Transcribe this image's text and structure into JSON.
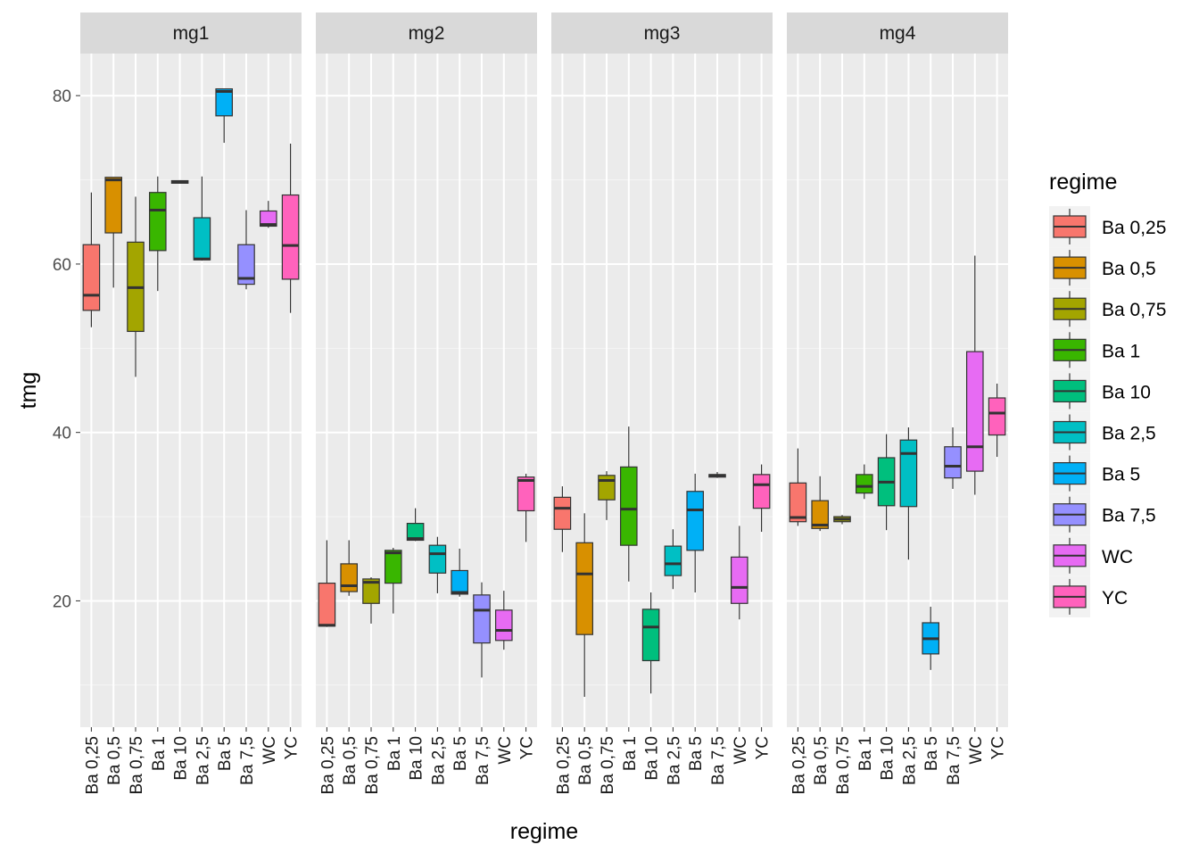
{
  "chart_data": {
    "type": "boxplot",
    "xlabel": "regime",
    "ylabel": "tmg",
    "ylim": [
      5,
      85
    ],
    "yticks": [
      20,
      40,
      60,
      80
    ],
    "grid": true,
    "legend": {
      "title": "regime",
      "position": "right",
      "entries": [
        "Ba 0,25",
        "Ba 0,5",
        "Ba 0,75",
        "Ba 1",
        "Ba 10",
        "Ba 2,5",
        "Ba 5",
        "Ba 7,5",
        "WC",
        "YC"
      ]
    },
    "colors": [
      "#F8766D",
      "#D89000",
      "#A3A500",
      "#39B600",
      "#00BF7D",
      "#00BFC4",
      "#00B0F6",
      "#9590FF",
      "#E76BF3",
      "#FF62BC"
    ],
    "categories": [
      "Ba 0,25",
      "Ba 0,5",
      "Ba 0,75",
      "Ba 1",
      "Ba 10",
      "Ba 2,5",
      "Ba 5",
      "Ba 7,5",
      "WC",
      "YC"
    ],
    "facets": [
      {
        "label": "mg1",
        "boxes": [
          {
            "regime": "Ba 0,25",
            "min": 52.5,
            "q1": 54.5,
            "median": 56.3,
            "q3": 62.3,
            "max": 68.5
          },
          {
            "regime": "Ba 0,5",
            "min": 57.2,
            "q1": 63.7,
            "median": 70.0,
            "q3": 70.3,
            "max": 70.3
          },
          {
            "regime": "Ba 0,75",
            "min": 46.6,
            "q1": 52.0,
            "median": 57.2,
            "q3": 62.6,
            "max": 68.0
          },
          {
            "regime": "Ba 1",
            "min": 56.8,
            "q1": 61.6,
            "median": 66.4,
            "q3": 68.5,
            "max": 70.4
          },
          {
            "regime": "Ba 10",
            "min": 69.6,
            "q1": 69.6,
            "median": 69.8,
            "q3": 69.9,
            "max": 69.9
          },
          {
            "regime": "Ba 2,5",
            "min": 60.4,
            "q1": 60.5,
            "median": 60.6,
            "q3": 65.5,
            "max": 70.4
          },
          {
            "regime": "Ba 5",
            "min": 74.4,
            "q1": 77.6,
            "median": 80.5,
            "q3": 80.8,
            "max": 80.8
          },
          {
            "regime": "Ba 7,5",
            "min": 57.0,
            "q1": 57.6,
            "median": 58.3,
            "q3": 62.3,
            "max": 66.4
          },
          {
            "regime": "WC",
            "min": 64.3,
            "q1": 64.5,
            "median": 64.7,
            "q3": 66.3,
            "max": 67.5
          },
          {
            "regime": "YC",
            "min": 54.2,
            "q1": 58.2,
            "median": 62.2,
            "q3": 68.2,
            "max": 74.3
          }
        ]
      },
      {
        "label": "mg2",
        "boxes": [
          {
            "regime": "Ba 0,25",
            "min": 16.9,
            "q1": 17.0,
            "median": 17.1,
            "q3": 22.1,
            "max": 27.2
          },
          {
            "regime": "Ba 0,5",
            "min": 20.6,
            "q1": 21.1,
            "median": 21.8,
            "q3": 24.4,
            "max": 27.2
          },
          {
            "regime": "Ba 0,75",
            "min": 17.3,
            "q1": 19.7,
            "median": 22.2,
            "q3": 22.6,
            "max": 22.8
          },
          {
            "regime": "Ba 1",
            "min": 18.5,
            "q1": 22.1,
            "median": 25.7,
            "q3": 26.0,
            "max": 26.3
          },
          {
            "regime": "Ba 10",
            "min": 27.1,
            "q1": 27.2,
            "median": 27.4,
            "q3": 29.2,
            "max": 31.0
          },
          {
            "regime": "Ba 2,5",
            "min": 20.9,
            "q1": 23.3,
            "median": 25.6,
            "q3": 26.6,
            "max": 27.6
          },
          {
            "regime": "Ba 5",
            "min": 20.5,
            "q1": 20.8,
            "median": 21.0,
            "q3": 23.6,
            "max": 26.2
          },
          {
            "regime": "Ba 7,5",
            "min": 10.9,
            "q1": 15.0,
            "median": 18.9,
            "q3": 20.7,
            "max": 22.2
          },
          {
            "regime": "WC",
            "min": 14.2,
            "q1": 15.3,
            "median": 16.5,
            "q3": 18.9,
            "max": 21.2
          },
          {
            "regime": "YC",
            "min": 27.0,
            "q1": 30.7,
            "median": 34.3,
            "q3": 34.7,
            "max": 35.1
          }
        ]
      },
      {
        "label": "mg3",
        "boxes": [
          {
            "regime": "Ba 0,25",
            "min": 25.8,
            "q1": 28.5,
            "median": 31.0,
            "q3": 32.3,
            "max": 33.6
          },
          {
            "regime": "Ba 0,5",
            "min": 8.6,
            "q1": 16.0,
            "median": 23.2,
            "q3": 26.9,
            "max": 30.4
          },
          {
            "regime": "Ba 0,75",
            "min": 29.6,
            "q1": 32.0,
            "median": 34.3,
            "q3": 34.9,
            "max": 35.4
          },
          {
            "regime": "Ba 1",
            "min": 22.3,
            "q1": 26.6,
            "median": 30.9,
            "q3": 35.9,
            "max": 40.7
          },
          {
            "regime": "Ba 10",
            "min": 9.0,
            "q1": 12.9,
            "median": 16.9,
            "q3": 19.0,
            "max": 21.0
          },
          {
            "regime": "Ba 2,5",
            "min": 21.4,
            "q1": 23.0,
            "median": 24.4,
            "q3": 26.5,
            "max": 28.5
          },
          {
            "regime": "Ba 5",
            "min": 21.0,
            "q1": 26.0,
            "median": 30.8,
            "q3": 33.0,
            "max": 35.1
          },
          {
            "regime": "Ba 7,5",
            "min": 34.6,
            "q1": 34.7,
            "median": 34.9,
            "q3": 35.0,
            "max": 35.3
          },
          {
            "regime": "WC",
            "min": 17.8,
            "q1": 19.7,
            "median": 21.6,
            "q3": 25.2,
            "max": 28.9
          },
          {
            "regime": "YC",
            "min": 28.2,
            "q1": 31.0,
            "median": 33.8,
            "q3": 35.0,
            "max": 36.2
          }
        ]
      },
      {
        "label": "mg4",
        "boxes": [
          {
            "regime": "Ba 0,25",
            "min": 28.9,
            "q1": 29.4,
            "median": 29.9,
            "q3": 34.0,
            "max": 38.1
          },
          {
            "regime": "Ba 0,5",
            "min": 28.3,
            "q1": 28.6,
            "median": 29.0,
            "q3": 31.9,
            "max": 34.8
          },
          {
            "regime": "Ba 0,75",
            "min": 29.1,
            "q1": 29.4,
            "median": 29.7,
            "q3": 30.0,
            "max": 30.2
          },
          {
            "regime": "Ba 1",
            "min": 32.1,
            "q1": 32.8,
            "median": 33.6,
            "q3": 35.0,
            "max": 36.2
          },
          {
            "regime": "Ba 10",
            "min": 28.4,
            "q1": 31.3,
            "median": 34.1,
            "q3": 37.0,
            "max": 39.8
          },
          {
            "regime": "Ba 2,5",
            "min": 24.9,
            "q1": 31.2,
            "median": 37.5,
            "q3": 39.1,
            "max": 40.6
          },
          {
            "regime": "Ba 5",
            "min": 11.8,
            "q1": 13.7,
            "median": 15.5,
            "q3": 17.4,
            "max": 19.3
          },
          {
            "regime": "Ba 7,5",
            "min": 33.3,
            "q1": 34.6,
            "median": 36.0,
            "q3": 38.3,
            "max": 40.6
          },
          {
            "regime": "WC",
            "min": 32.6,
            "q1": 35.4,
            "median": 38.3,
            "q3": 49.6,
            "max": 61.0
          },
          {
            "regime": "YC",
            "min": 37.1,
            "q1": 39.7,
            "median": 42.3,
            "q3": 44.1,
            "max": 45.8
          }
        ]
      }
    ]
  }
}
